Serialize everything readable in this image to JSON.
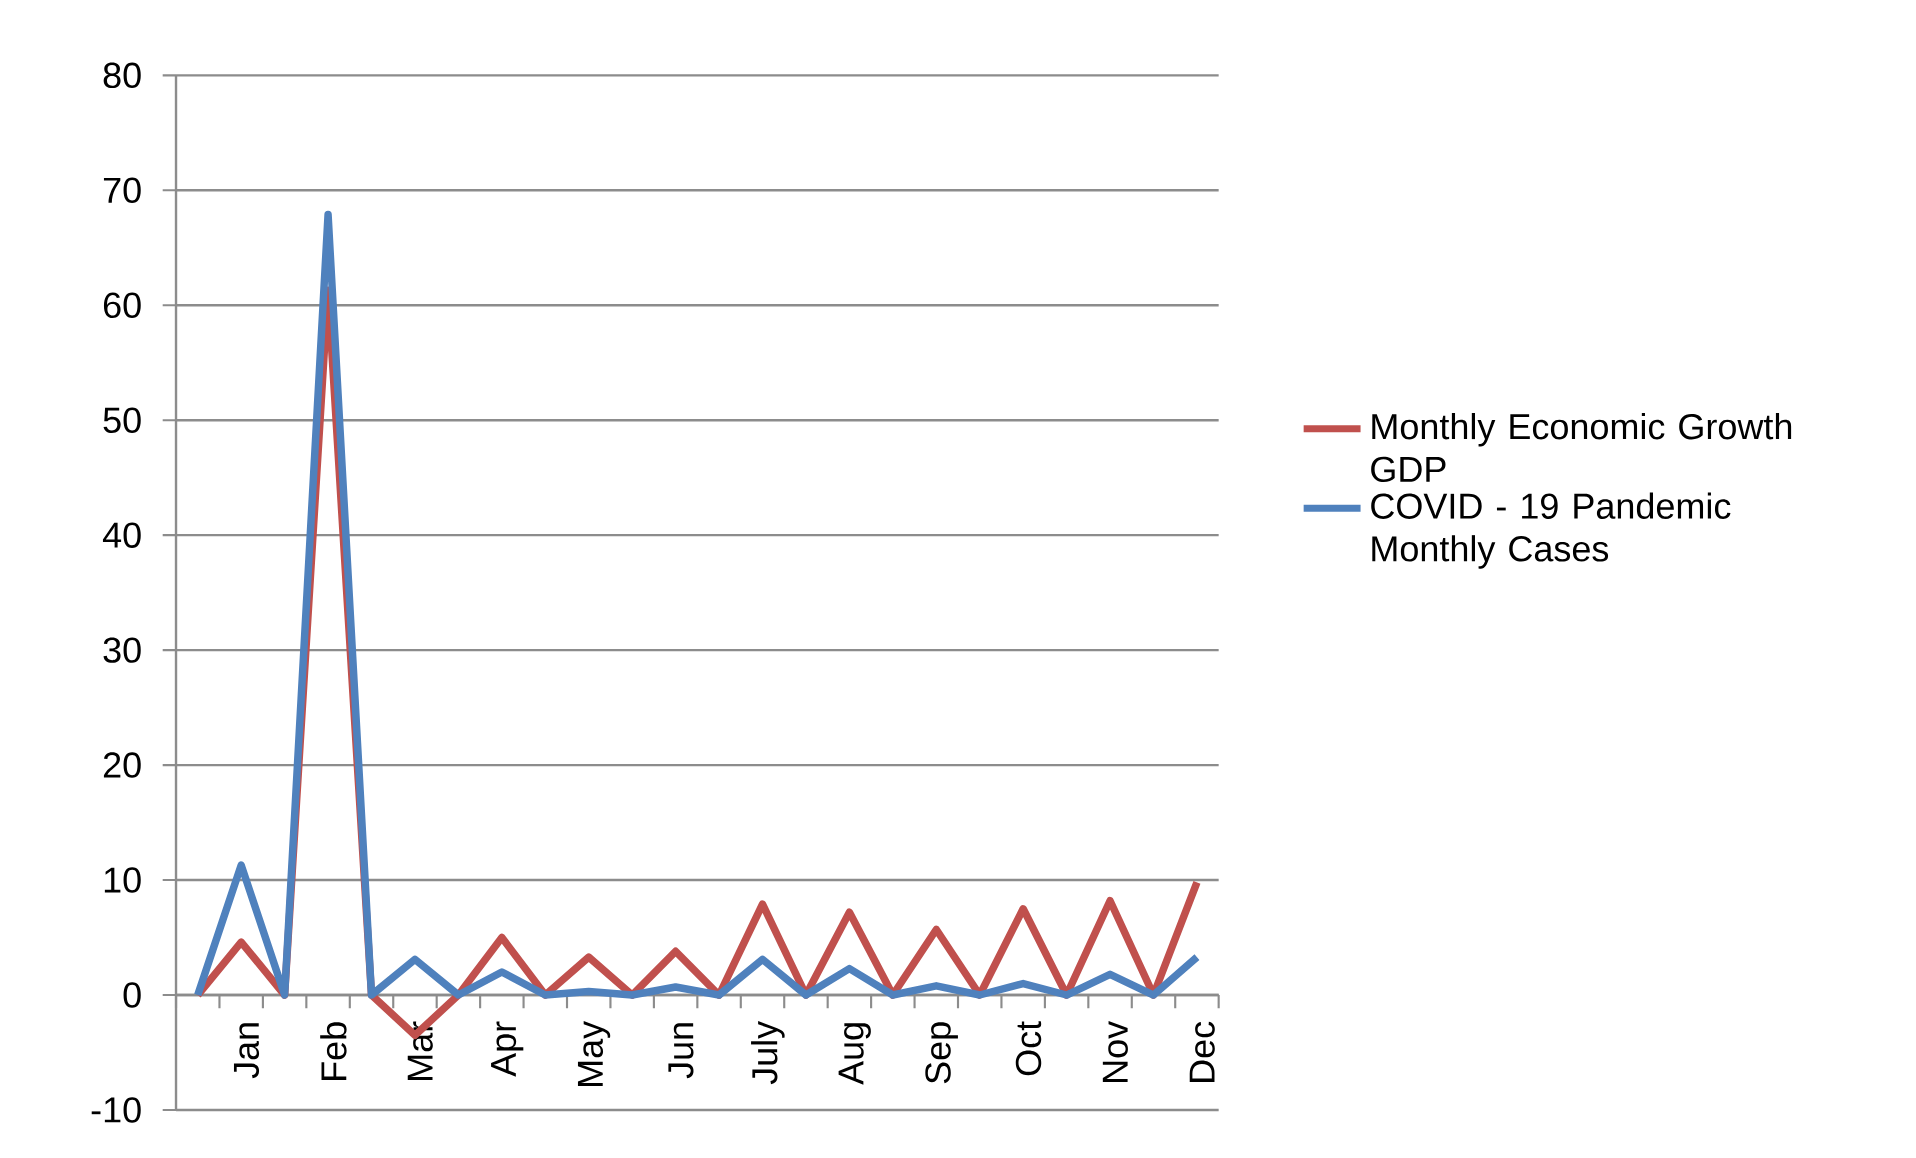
{
  "chart_data": {
    "type": "line",
    "categories": [
      null,
      "Jan",
      null,
      "Feb",
      null,
      "Mar",
      null,
      "Apr",
      null,
      "May",
      null,
      "Jun",
      null,
      "July",
      null,
      "Aug",
      null,
      "Sep",
      null,
      "Oct",
      null,
      "Nov",
      null,
      "Dec"
    ],
    "series": [
      {
        "name": "Monthly Economic Growth GDP",
        "color": "#c0504d",
        "values": [
          0,
          4.6,
          0,
          61.3,
          0,
          -3.5,
          0,
          5.0,
          0,
          3.3,
          0,
          3.8,
          0,
          7.9,
          0,
          7.2,
          0,
          5.7,
          0,
          7.5,
          0,
          8.2,
          0,
          9.8
        ]
      },
      {
        "name": "COVID - 19 Pandemic Monthly Cases",
        "color": "#4f81bd",
        "values": [
          0,
          11.3,
          0,
          67.9,
          0,
          3.1,
          0,
          2.0,
          0,
          0.3,
          0,
          0.7,
          0,
          3.1,
          0,
          2.3,
          0,
          0.8,
          0,
          1.0,
          0,
          1.8,
          0,
          3.3
        ]
      }
    ],
    "ylim": [
      -10,
      80
    ],
    "yticks": [
      -10,
      0,
      10,
      20,
      30,
      40,
      50,
      60,
      70,
      80
    ],
    "grid": "y",
    "legend": "right",
    "marker": "none",
    "line_style": "solid"
  }
}
